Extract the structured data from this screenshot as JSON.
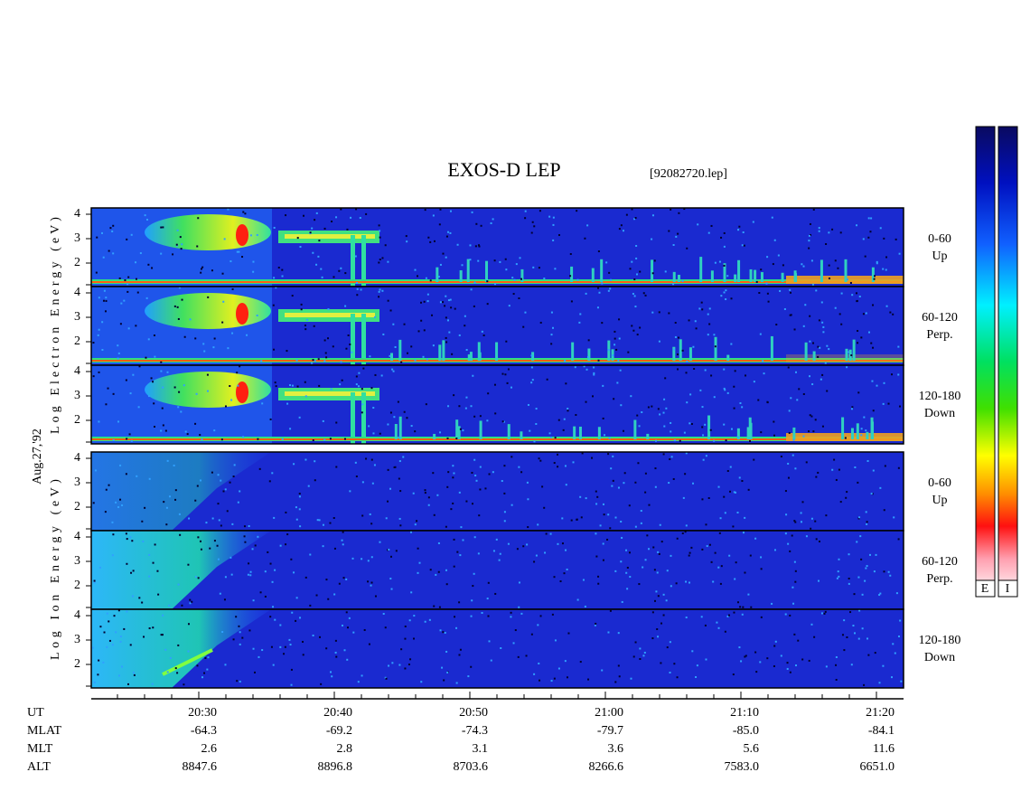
{
  "header": {
    "title": "EXOS-D LEP",
    "file": "[92082720.lep]"
  },
  "date": "Aug.27,'92",
  "electron_axis_label": "Log Electron Energy (eV)",
  "ion_axis_label": "Log Ion Energy (eV)",
  "panels": [
    {
      "species": "electron",
      "ticks": [
        "4",
        "3",
        "2"
      ],
      "label": [
        "0-60",
        "Up"
      ]
    },
    {
      "species": "electron",
      "ticks": [
        "4",
        "3",
        "2"
      ],
      "label": [
        "60-120",
        "Perp."
      ]
    },
    {
      "species": "electron",
      "ticks": [
        "4",
        "3",
        "2"
      ],
      "label": [
        "120-180",
        "Down"
      ]
    },
    {
      "species": "ion",
      "ticks": [
        "4",
        "3",
        "2"
      ],
      "label": [
        "0-60",
        "Up"
      ]
    },
    {
      "species": "ion",
      "ticks": [
        "4",
        "3",
        "2"
      ],
      "label": [
        "60-120",
        "Perp."
      ]
    },
    {
      "species": "ion",
      "ticks": [
        "4",
        "3",
        "2"
      ],
      "label": [
        "120-180",
        "Down"
      ]
    }
  ],
  "x_axis": {
    "rows": [
      {
        "name": "UT",
        "values": [
          "20:30",
          "20:40",
          "20:50",
          "21:00",
          "21:10",
          "21:20"
        ]
      },
      {
        "name": "MLAT",
        "values": [
          "-64.3",
          "-69.2",
          "-74.3",
          "-79.7",
          "-85.0",
          "-84.1"
        ]
      },
      {
        "name": "MLT",
        "values": [
          "2.6",
          "2.8",
          "3.1",
          "3.6",
          "5.6",
          "11.6"
        ]
      },
      {
        "name": "ALT",
        "values": [
          "8847.6",
          "8896.8",
          "8703.6",
          "8266.6",
          "7583.0",
          "6651.0"
        ]
      }
    ]
  },
  "colorbar_labels": [
    "E",
    "I"
  ]
}
